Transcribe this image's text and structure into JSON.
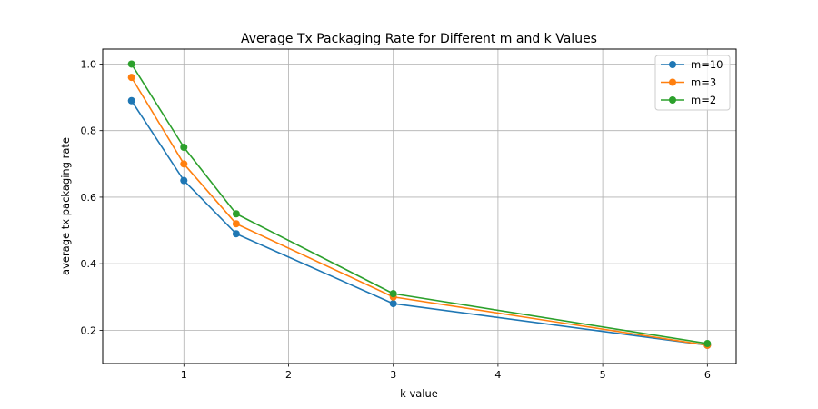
{
  "chart_data": {
    "type": "line",
    "title": "Average Tx Packaging Rate for Different m and k Values",
    "xlabel": "k value",
    "ylabel": "average tx packaging rate",
    "x": [
      0.5,
      1,
      1.5,
      3,
      6
    ],
    "xlim": [
      0.225,
      6.275
    ],
    "ylim": [
      0.1,
      1.045
    ],
    "xticks": [
      1,
      2,
      3,
      4,
      5,
      6
    ],
    "yticks": [
      0.2,
      0.4,
      0.6,
      0.8,
      1.0
    ],
    "xtick_labels": [
      "1",
      "2",
      "3",
      "4",
      "5",
      "6"
    ],
    "ytick_labels": [
      "0.2",
      "0.4",
      "0.6",
      "0.8",
      "1.0"
    ],
    "grid": true,
    "legend_position": "top-right",
    "series": [
      {
        "name": "m=10",
        "color": "#1f77b4",
        "values": [
          0.89,
          0.65,
          0.49,
          0.28,
          0.155
        ]
      },
      {
        "name": "m=3",
        "color": "#ff7f0e",
        "values": [
          0.96,
          0.7,
          0.52,
          0.3,
          0.155
        ]
      },
      {
        "name": "m=2",
        "color": "#2ca02c",
        "values": [
          1.0,
          0.75,
          0.55,
          0.31,
          0.16
        ]
      }
    ]
  }
}
